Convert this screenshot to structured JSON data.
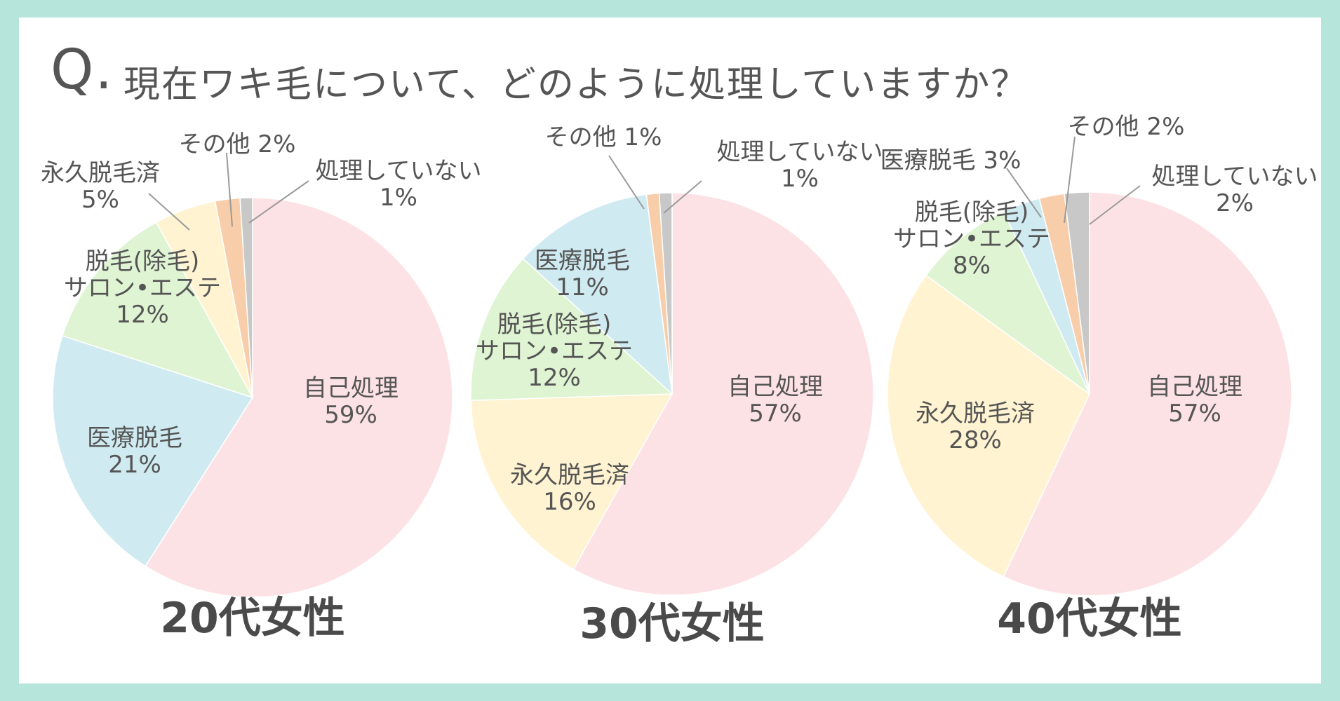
{
  "question": {
    "prefix": "Q.",
    "text": "現在ワキ毛について、どのように処理していますか？"
  },
  "colors": {
    "自己処理": "#fde2e5",
    "医療脱毛": "#cfebf1",
    "脱毛(除毛)サロン・エステ": "#dff4d3",
    "永久脱毛済": "#fff3d1",
    "その他": "#f8cda9",
    "処理していない": "#c8c8c8"
  },
  "chart_data": [
    {
      "type": "pie",
      "title": "20代女性",
      "slices": [
        {
          "category": "自己処理",
          "value": 59,
          "label_lines": [
            "自己処理",
            "59%"
          ]
        },
        {
          "category": "医療脱毛",
          "value": 21,
          "label_lines": [
            "医療脱毛",
            "21%"
          ]
        },
        {
          "category": "脱毛(除毛)サロン・エステ",
          "value": 12,
          "label_lines": [
            "脱毛(除毛)",
            "サロン•エステ",
            "12%"
          ]
        },
        {
          "category": "永久脱毛済",
          "value": 5,
          "label_lines": [
            "永久脱毛済",
            "5%"
          ]
        },
        {
          "category": "その他",
          "value": 2,
          "label_lines": [
            "その他 2%"
          ]
        },
        {
          "category": "処理していない",
          "value": 1,
          "label_lines": [
            "処理していない",
            "1%"
          ]
        }
      ]
    },
    {
      "type": "pie",
      "title": "30代女性",
      "slices": [
        {
          "category": "自己処理",
          "value": 57,
          "label_lines": [
            "自己処理",
            "57%"
          ]
        },
        {
          "category": "永久脱毛済",
          "value": 16,
          "label_lines": [
            "永久脱毛済",
            "16%"
          ]
        },
        {
          "category": "脱毛(除毛)サロン・エステ",
          "value": 12,
          "label_lines": [
            "脱毛(除毛)",
            "サロン•エステ",
            "12%"
          ]
        },
        {
          "category": "医療脱毛",
          "value": 11,
          "label_lines": [
            "医療脱毛",
            "11%"
          ]
        },
        {
          "category": "その他",
          "value": 1,
          "label_lines": [
            "その他  1%"
          ]
        },
        {
          "category": "処理していない",
          "value": 1,
          "label_lines": [
            "処理していない",
            "1%"
          ]
        }
      ]
    },
    {
      "type": "pie",
      "title": "40代女性",
      "slices": [
        {
          "category": "自己処理",
          "value": 57,
          "label_lines": [
            "自己処理",
            "57%"
          ]
        },
        {
          "category": "永久脱毛済",
          "value": 28,
          "label_lines": [
            "永久脱毛済",
            "28%"
          ]
        },
        {
          "category": "脱毛(除毛)サロン・エステ",
          "value": 8,
          "label_lines": [
            "脱毛(除毛)",
            "サロン•エステ",
            "8%"
          ]
        },
        {
          "category": "医療脱毛",
          "value": 3,
          "label_lines": [
            "医療脱毛 3%"
          ]
        },
        {
          "category": "その他",
          "value": 2,
          "label_lines": [
            "その他 2%"
          ]
        },
        {
          "category": "処理していない",
          "value": 2,
          "label_lines": [
            "処理していない",
            "2%"
          ]
        }
      ]
    }
  ]
}
